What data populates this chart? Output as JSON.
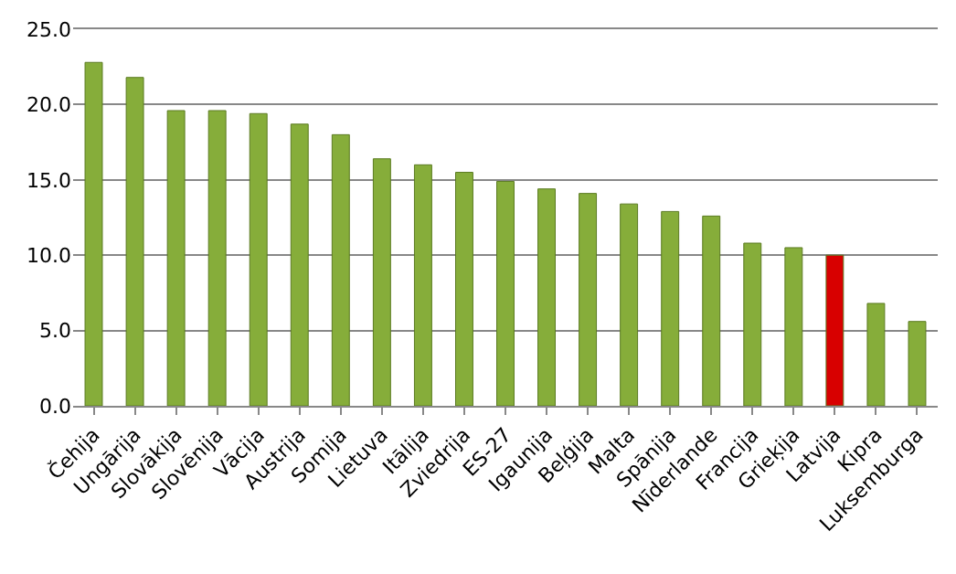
{
  "chart_data": {
    "type": "bar",
    "categories": [
      "Čehija",
      "Ungārija",
      "Slovākija",
      "Slovēnija",
      "Vācija",
      "Austrija",
      "Somija",
      "Lietuva",
      "Itālija",
      "Zviedrija",
      "ES-27",
      "Igaunija",
      "Beļģija",
      "Malta",
      "Spānija",
      "Nīderlande",
      "Francija",
      "Grieķija",
      "Latvija",
      "Kipra",
      "Luksemburga"
    ],
    "values": [
      22.8,
      21.8,
      19.6,
      19.6,
      19.4,
      18.7,
      18.0,
      16.4,
      16.0,
      15.5,
      14.9,
      14.4,
      14.1,
      13.4,
      12.9,
      12.6,
      10.8,
      10.5,
      10.0,
      6.8,
      5.6
    ],
    "colors": [
      "#86ad3a",
      "#86ad3a",
      "#86ad3a",
      "#86ad3a",
      "#86ad3a",
      "#86ad3a",
      "#86ad3a",
      "#86ad3a",
      "#86ad3a",
      "#86ad3a",
      "#86ad3a",
      "#86ad3a",
      "#86ad3a",
      "#86ad3a",
      "#86ad3a",
      "#86ad3a",
      "#86ad3a",
      "#86ad3a",
      "#d80000",
      "#86ad3a",
      "#86ad3a"
    ],
    "ylim": [
      0,
      25
    ],
    "yticks": [
      {
        "value": 0,
        "label": "0.0"
      },
      {
        "value": 5,
        "label": "5.0"
      },
      {
        "value": 10,
        "label": "10.0"
      },
      {
        "value": 15,
        "label": "15.0"
      },
      {
        "value": 20,
        "label": "20.0"
      },
      {
        "value": 25,
        "label": "25.0"
      }
    ],
    "grid": "y"
  }
}
